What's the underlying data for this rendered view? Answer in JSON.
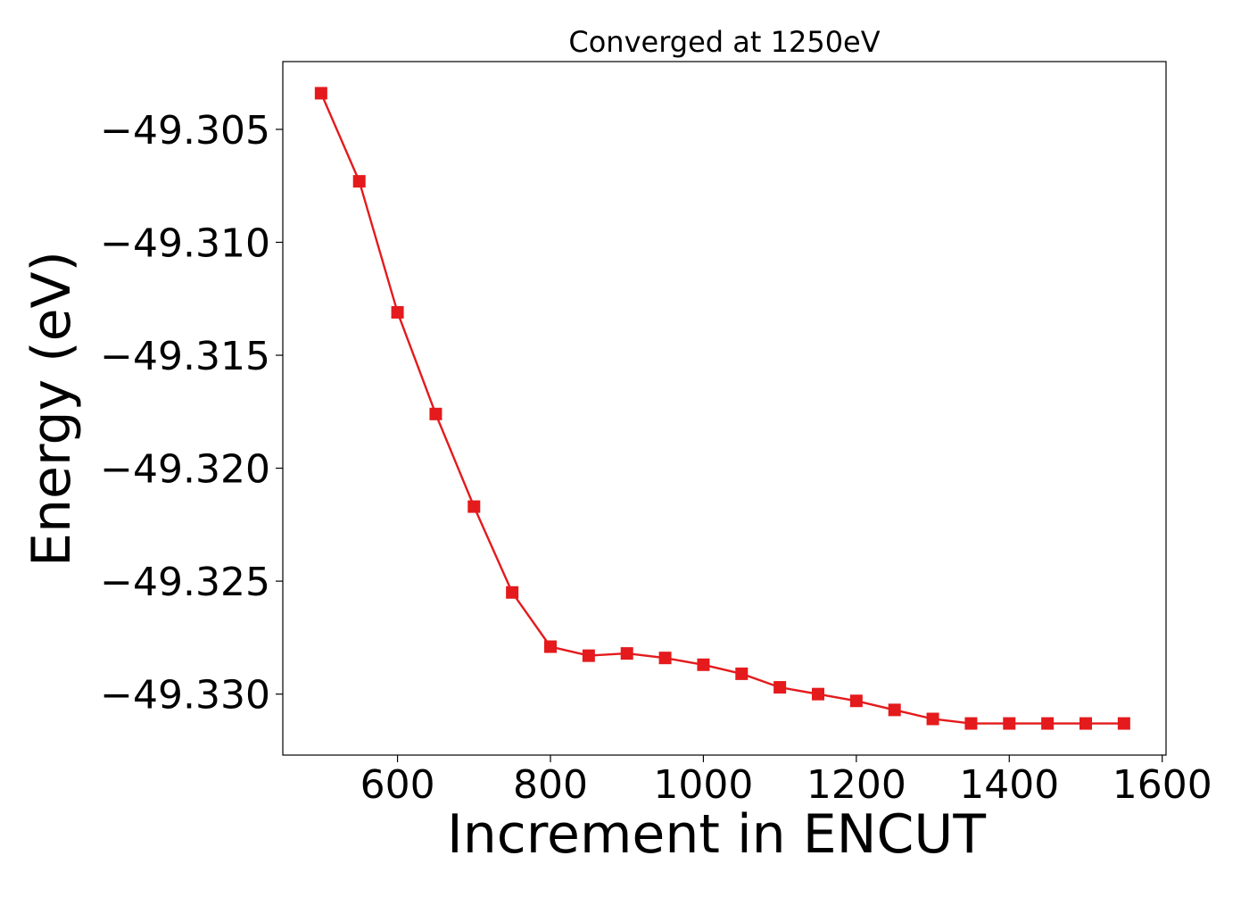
{
  "chart_data": {
    "type": "line",
    "title": "Converged at 1250eV",
    "xlabel": "Increment in ENCUT",
    "ylabel": "Energy (eV)",
    "xlim": [
      450,
      1605
    ],
    "ylim": [
      -49.3327,
      -49.302
    ],
    "x_ticks": [
      600,
      800,
      1000,
      1200,
      1400,
      1600
    ],
    "x_tick_labels": [
      "600",
      "800",
      "1000",
      "1200",
      "1400",
      "1600"
    ],
    "y_ticks": [
      -49.305,
      -49.31,
      -49.315,
      -49.32,
      -49.325,
      -49.33
    ],
    "y_tick_labels": [
      "−49.305",
      "−49.310",
      "−49.315",
      "−49.320",
      "−49.325",
      "−49.330"
    ],
    "grid": false,
    "marker": "square",
    "color": "#e41a1c",
    "series": [
      {
        "x": [
          500,
          550,
          600,
          650,
          700,
          750,
          800,
          850,
          900,
          950,
          1000,
          1050,
          1100,
          1150,
          1200,
          1250,
          1300,
          1350,
          1400,
          1450,
          1500,
          1550
        ],
        "values": [
          -49.3034,
          -49.3073,
          -49.3131,
          -49.3176,
          -49.3217,
          -49.3255,
          -49.3279,
          -49.3283,
          -49.3282,
          -49.3284,
          -49.3287,
          -49.3291,
          -49.3297,
          -49.33,
          -49.3303,
          -49.3307,
          -49.3311,
          -49.3313,
          -49.3313,
          -49.3313,
          -49.3313,
          -49.3313
        ]
      }
    ]
  }
}
